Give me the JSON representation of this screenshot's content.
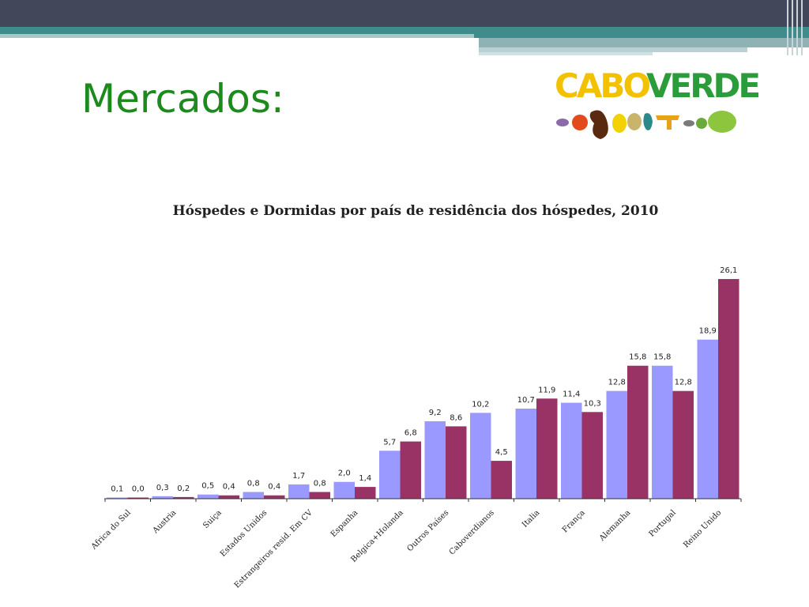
{
  "slide": {
    "title": "Mercados:"
  },
  "logo": {
    "word1": "CABO",
    "word2": "VERDE"
  },
  "chart_data": {
    "type": "bar",
    "title": "Hóspedes e Dormidas por país de residência dos hóspedes, 2010",
    "xlabel": "",
    "ylabel": "",
    "ylim": [
      0,
      27
    ],
    "grid": false,
    "legend": "none",
    "categories": [
      "Africa do Sul",
      "Austria",
      "Suiça",
      "Estados Unidos",
      "Estrangeiros resid. Em CV",
      "Espanha",
      "Belgica+Holanda",
      "Outros Países",
      "Caboverdianos",
      "Italia",
      "França",
      "Alemanha",
      "Portugal",
      "Reino Unido"
    ],
    "series": [
      {
        "color": "#9999ff",
        "values": [
          0.1,
          0.3,
          0.5,
          0.8,
          1.7,
          2.0,
          5.7,
          9.2,
          10.2,
          10.7,
          11.4,
          12.8,
          15.8,
          18.9
        ],
        "labels": [
          "0,1",
          "0,3",
          "0,5",
          "0,8",
          "1,7",
          "2,0",
          "5,7",
          "9,2",
          "10,2",
          "10,7",
          "11,4",
          "12,8",
          "15,8",
          "18,9"
        ]
      },
      {
        "color": "#993366",
        "values": [
          0.0,
          0.2,
          0.4,
          0.4,
          0.8,
          1.4,
          6.8,
          8.6,
          4.5,
          11.9,
          10.3,
          15.8,
          12.8,
          26.1
        ],
        "labels": [
          "0,0",
          "0,2",
          "0,4",
          "0,4",
          "0,8",
          "1,4",
          "6,8",
          "8,6",
          "4,5",
          "11,9",
          "10,3",
          "15,8",
          "12,8",
          "26,1"
        ]
      }
    ]
  },
  "colors": {
    "title_green": "#1d8a1d",
    "header_dark": "#43475a",
    "header_teal": "#3f8c8c"
  }
}
